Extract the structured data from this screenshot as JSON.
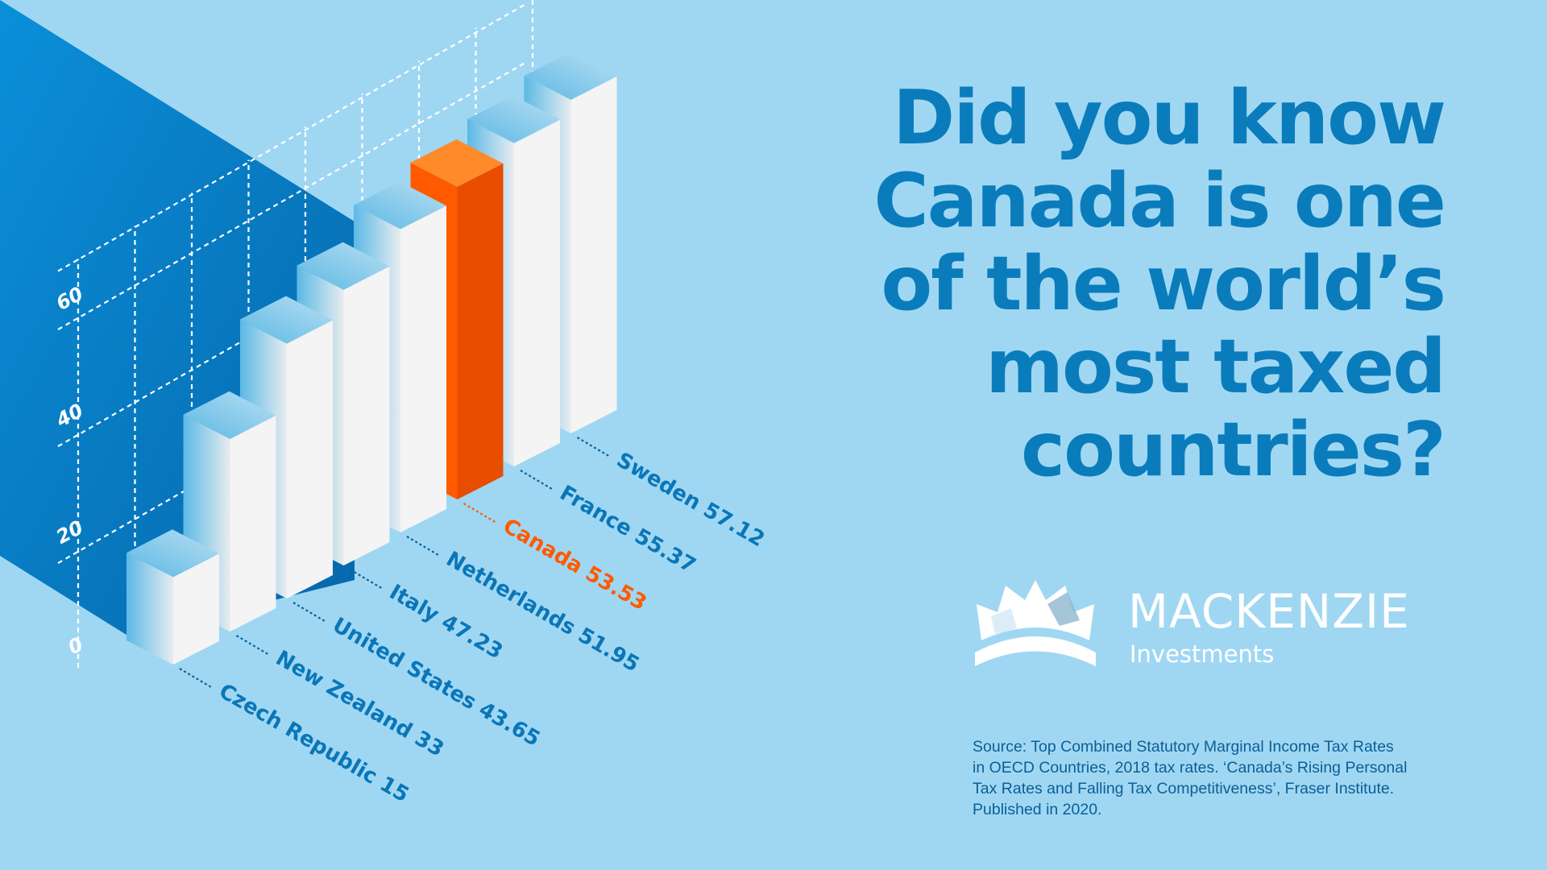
{
  "headline": {
    "lines": [
      "Did you know",
      "Canada is one",
      "of the world’s",
      "most taxed",
      "countries?"
    ]
  },
  "brand": {
    "name": "MACKENZIE",
    "sub": "Investments"
  },
  "source": {
    "lines": [
      "Source: Top Combined Statutory Marginal Income Tax Rates",
      "in OECD Countries, 2018 tax rates. ‘Canada’s Rising Personal",
      "Tax Rates and Falling Tax Competitiveness’, Fraser Institute.",
      "Published in 2020."
    ]
  },
  "colors": {
    "background": "#9fd7f3",
    "headline": "#0a7cbc",
    "bar_highlight": "#ff5a00",
    "bar_default": "#ffffff",
    "label_default": "#0a76b8",
    "label_highlight": "#ff5a00"
  },
  "chart_data": {
    "type": "bar",
    "style": "3d-isometric",
    "categories": [
      "Czech Republic",
      "New Zealand",
      "United States",
      "Italy",
      "Netherlands",
      "Canada",
      "France",
      "Sweden"
    ],
    "values": [
      15,
      33,
      43.65,
      47.23,
      51.95,
      53.53,
      55.37,
      57.12
    ],
    "labels": [
      "Czech Republic 15",
      "New Zealand 33",
      "United States 43.65",
      "Italy 47.23",
      "Netherlands 51.95",
      "Canada 53.53",
      "France 55.37",
      "Sweden 57.12"
    ],
    "highlight": "Canada",
    "yticks": [
      "0",
      "20",
      "40",
      "60"
    ],
    "ytick_values": [
      0,
      20,
      40,
      60
    ],
    "ylim": [
      0,
      70
    ],
    "grid": true
  }
}
